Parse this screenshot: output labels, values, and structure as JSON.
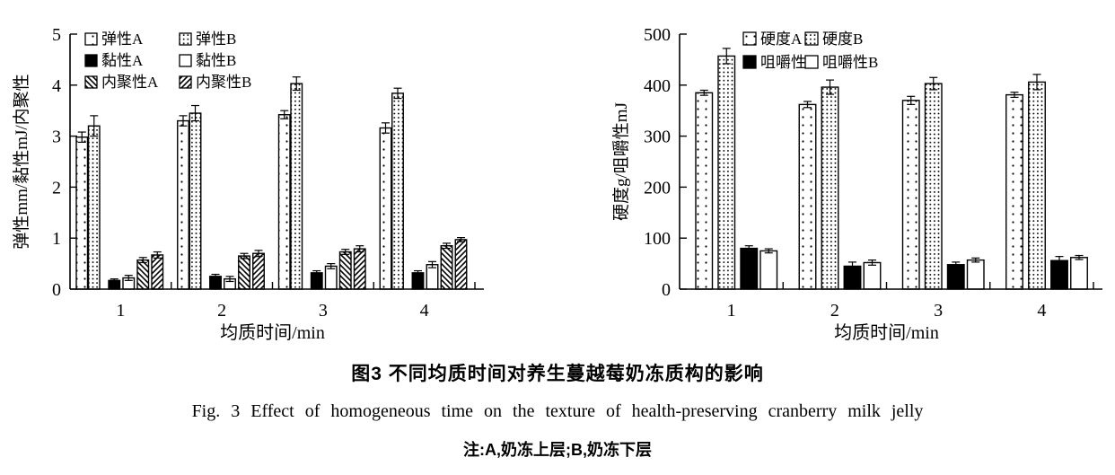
{
  "captions": {
    "zh_title": "图3  不同均质时间对养生蔓越莓奶冻质构的影响",
    "en_title": "Fig. 3  Effect of homogeneous time on the texture of health-preserving cranberry milk jelly",
    "note": "注:A,奶冻上层;B,奶冻下层"
  },
  "chart_data": [
    {
      "type": "bar",
      "title": "",
      "categories": [
        "1",
        "2",
        "3",
        "4"
      ],
      "xlabel": "均质时间/min",
      "ylabel": "弹性mm/黏性mJ/内聚性",
      "ylim": [
        0,
        5
      ],
      "yticks": [
        0,
        1,
        2,
        3,
        4,
        5
      ],
      "grid": false,
      "legend_position": "top-left-inside",
      "series": [
        {
          "name": "弹性A",
          "pattern": "dots-sparse",
          "values": [
            2.98,
            3.3,
            3.42,
            3.16
          ],
          "errors": [
            0.1,
            0.1,
            0.08,
            0.1
          ]
        },
        {
          "name": "弹性B",
          "pattern": "dots-dense",
          "values": [
            3.2,
            3.45,
            4.03,
            3.84
          ],
          "errors": [
            0.2,
            0.15,
            0.13,
            0.1
          ]
        },
        {
          "name": "黏性A",
          "pattern": "solid-black",
          "values": [
            0.17,
            0.25,
            0.32,
            0.32
          ],
          "errors": [
            0.03,
            0.04,
            0.04,
            0.04
          ]
        },
        {
          "name": "黏性B",
          "pattern": "white",
          "values": [
            0.22,
            0.2,
            0.45,
            0.48
          ],
          "errors": [
            0.05,
            0.05,
            0.05,
            0.06
          ]
        },
        {
          "name": "内聚性A",
          "pattern": "hatch-back",
          "values": [
            0.57,
            0.65,
            0.73,
            0.85
          ],
          "errors": [
            0.05,
            0.05,
            0.05,
            0.05
          ]
        },
        {
          "name": "内聚性B",
          "pattern": "hatch-fwd",
          "values": [
            0.67,
            0.7,
            0.79,
            0.97
          ],
          "errors": [
            0.06,
            0.06,
            0.06,
            0.04
          ]
        }
      ]
    },
    {
      "type": "bar",
      "title": "",
      "categories": [
        "1",
        "2",
        "3",
        "4"
      ],
      "xlabel": "均质时间/min",
      "ylabel": "硬度g/咀嚼性mJ",
      "ylim": [
        0,
        500
      ],
      "yticks": [
        0,
        100,
        200,
        300,
        400,
        500
      ],
      "grid": false,
      "legend_position": "top-left-inside",
      "series": [
        {
          "name": "硬度A",
          "pattern": "dots-sparse",
          "values": [
            385,
            362,
            370,
            381
          ],
          "errors": [
            5,
            6,
            8,
            5
          ]
        },
        {
          "name": "硬度B",
          "pattern": "dots-dense",
          "values": [
            457,
            396,
            403,
            406
          ],
          "errors": [
            15,
            14,
            12,
            15
          ]
        },
        {
          "name": "咀嚼性A",
          "pattern": "solid-black",
          "values": [
            80,
            45,
            48,
            56
          ],
          "errors": [
            5,
            8,
            5,
            8
          ]
        },
        {
          "name": "咀嚼性B",
          "pattern": "white",
          "values": [
            75,
            52,
            57,
            62
          ],
          "errors": [
            4,
            5,
            4,
            4
          ]
        }
      ]
    }
  ]
}
